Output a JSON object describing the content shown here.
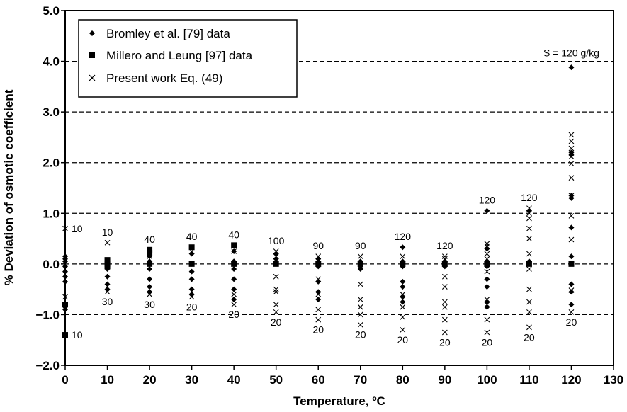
{
  "chart_data": {
    "type": "scatter",
    "xlabel": "Temperature, ºC",
    "ylabel": "% Deviation of osmotic coefficient",
    "xlim": [
      0,
      130
    ],
    "ylim": [
      -2.0,
      5.0
    ],
    "x_ticks": [
      "0",
      "10",
      "20",
      "30",
      "40",
      "50",
      "60",
      "70",
      "80",
      "90",
      "100",
      "110",
      "120",
      "130"
    ],
    "y_ticks": [
      "5.0",
      "4.0",
      "3.0",
      "2.0",
      "1.0",
      "0.0",
      "−1.0",
      "−2.0"
    ],
    "grid": "dashed horizontal lines at 4.0, 3.0, 2.0, 1.0, 0.0, -1.0",
    "legend_position": "top-left",
    "series": [
      {
        "name": "Bromley et al. [79] data",
        "marker": "diamond",
        "points": [
          [
            0,
            0.15
          ],
          [
            0,
            0.1
          ],
          [
            0,
            0.05
          ],
          [
            0,
            -0.05
          ],
          [
            0,
            -0.15
          ],
          [
            0,
            -0.25
          ],
          [
            0,
            -0.35
          ],
          [
            0,
            -0.85
          ],
          [
            0,
            -0.9
          ],
          [
            10,
            0.05
          ],
          [
            10,
            -0.1
          ],
          [
            10,
            -0.25
          ],
          [
            10,
            -0.4
          ],
          [
            10,
            -0.5
          ],
          [
            20,
            0.15
          ],
          [
            20,
            0.05
          ],
          [
            20,
            -0.1
          ],
          [
            20,
            -0.3
          ],
          [
            20,
            -0.45
          ],
          [
            20,
            -0.55
          ],
          [
            30,
            0.2
          ],
          [
            30,
            0.0
          ],
          [
            30,
            -0.15
          ],
          [
            30,
            -0.3
          ],
          [
            30,
            -0.5
          ],
          [
            30,
            -0.6
          ],
          [
            40,
            0.25
          ],
          [
            40,
            0.05
          ],
          [
            40,
            -0.1
          ],
          [
            40,
            -0.3
          ],
          [
            40,
            -0.5
          ],
          [
            40,
            -0.7
          ],
          [
            50,
            0.2
          ],
          [
            50,
            0.1
          ],
          [
            50,
            0.0
          ],
          [
            60,
            0.1
          ],
          [
            60,
            -0.05
          ],
          [
            60,
            -0.35
          ],
          [
            60,
            -0.55
          ],
          [
            60,
            -0.7
          ],
          [
            70,
            0.05
          ],
          [
            70,
            -0.05
          ],
          [
            70,
            -0.1
          ],
          [
            80,
            0.33
          ],
          [
            80,
            0.05
          ],
          [
            80,
            -0.05
          ],
          [
            80,
            -0.35
          ],
          [
            80,
            -0.45
          ],
          [
            80,
            -0.65
          ],
          [
            80,
            -0.75
          ],
          [
            90,
            0.05
          ],
          [
            90,
            -0.05
          ],
          [
            100,
            1.05
          ],
          [
            100,
            0.3
          ],
          [
            100,
            0.05
          ],
          [
            100,
            -0.05
          ],
          [
            100,
            -0.3
          ],
          [
            100,
            -0.45
          ],
          [
            100,
            -0.75
          ],
          [
            100,
            -0.85
          ],
          [
            110,
            1.05
          ],
          [
            110,
            0.05
          ],
          [
            120,
            3.88
          ],
          [
            120,
            2.2
          ],
          [
            120,
            2.15
          ],
          [
            120,
            1.35
          ],
          [
            120,
            1.3
          ],
          [
            120,
            0.72
          ],
          [
            120,
            0.15
          ],
          [
            120,
            -0.4
          ],
          [
            120,
            -0.55
          ],
          [
            120,
            -0.8
          ]
        ]
      },
      {
        "name": "Millero and Leung [97] data",
        "marker": "square",
        "points": [
          [
            0,
            -1.4
          ],
          [
            0,
            -0.8
          ],
          [
            10,
            0.08
          ],
          [
            10,
            0.0
          ],
          [
            10,
            -0.05
          ],
          [
            20,
            0.28
          ],
          [
            20,
            0.22
          ],
          [
            20,
            0.0
          ],
          [
            30,
            0.33
          ],
          [
            30,
            0.0
          ],
          [
            40,
            0.37
          ],
          [
            40,
            0.0
          ],
          [
            50,
            0.0
          ],
          [
            60,
            0.0
          ],
          [
            70,
            0.0
          ],
          [
            80,
            0.0
          ],
          [
            90,
            0.0
          ],
          [
            100,
            0.0
          ],
          [
            110,
            0.0
          ],
          [
            120,
            0.0
          ]
        ]
      },
      {
        "name": "Present work Eq. (49)",
        "marker": "x",
        "points": [
          [
            0,
            0.7
          ],
          [
            0,
            -0.65
          ],
          [
            10,
            0.42
          ],
          [
            10,
            -0.55
          ],
          [
            20,
            0.15
          ],
          [
            20,
            -0.6
          ],
          [
            30,
            0.25
          ],
          [
            30,
            -0.65
          ],
          [
            40,
            0.25
          ],
          [
            40,
            -0.6
          ],
          [
            40,
            -0.8
          ],
          [
            50,
            0.25
          ],
          [
            50,
            0.15
          ],
          [
            50,
            -0.25
          ],
          [
            50,
            -0.5
          ],
          [
            50,
            -0.55
          ],
          [
            50,
            -0.8
          ],
          [
            50,
            -0.95
          ],
          [
            60,
            0.15
          ],
          [
            60,
            -0.3
          ],
          [
            60,
            -0.6
          ],
          [
            60,
            -0.9
          ],
          [
            60,
            -1.1
          ],
          [
            70,
            0.15
          ],
          [
            70,
            -0.4
          ],
          [
            70,
            -0.7
          ],
          [
            70,
            -0.85
          ],
          [
            70,
            -1.0
          ],
          [
            70,
            -1.2
          ],
          [
            80,
            0.15
          ],
          [
            80,
            -0.6
          ],
          [
            80,
            -0.85
          ],
          [
            80,
            -1.05
          ],
          [
            80,
            -1.3
          ],
          [
            90,
            0.15
          ],
          [
            90,
            0.1
          ],
          [
            90,
            -0.25
          ],
          [
            90,
            -0.45
          ],
          [
            90,
            -0.75
          ],
          [
            90,
            -0.85
          ],
          [
            90,
            -1.1
          ],
          [
            90,
            -1.35
          ],
          [
            100,
            0.4
          ],
          [
            100,
            0.35
          ],
          [
            100,
            0.2
          ],
          [
            100,
            0.1
          ],
          [
            100,
            -0.15
          ],
          [
            100,
            -0.7
          ],
          [
            100,
            -0.8
          ],
          [
            100,
            -1.1
          ],
          [
            100,
            -1.35
          ],
          [
            110,
            1.1
          ],
          [
            110,
            1.0
          ],
          [
            110,
            0.9
          ],
          [
            110,
            0.7
          ],
          [
            110,
            0.5
          ],
          [
            110,
            0.2
          ],
          [
            110,
            -0.1
          ],
          [
            110,
            -0.5
          ],
          [
            110,
            -0.75
          ],
          [
            110,
            -0.95
          ],
          [
            110,
            -1.25
          ],
          [
            120,
            2.55
          ],
          [
            120,
            2.42
          ],
          [
            120,
            2.28
          ],
          [
            120,
            2.12
          ],
          [
            120,
            1.98
          ],
          [
            120,
            1.7
          ],
          [
            120,
            1.35
          ],
          [
            120,
            0.95
          ],
          [
            120,
            0.48
          ],
          [
            120,
            -0.52
          ],
          [
            120,
            -0.95
          ]
        ]
      }
    ],
    "annotations": [
      {
        "text": "S = 120 g/kg",
        "x": 120,
        "y": 4.0
      },
      {
        "text": "10",
        "x": 0,
        "y": 0.7
      },
      {
        "text": "10",
        "x": 0,
        "y": -1.4
      },
      {
        "text": "10",
        "x": 10,
        "y": 0.42
      },
      {
        "text": "30",
        "x": 10,
        "y": -0.55
      },
      {
        "text": "40",
        "x": 20,
        "y": 0.28
      },
      {
        "text": "30",
        "x": 20,
        "y": -0.6
      },
      {
        "text": "40",
        "x": 30,
        "y": 0.33
      },
      {
        "text": "20",
        "x": 30,
        "y": -0.65
      },
      {
        "text": "40",
        "x": 40,
        "y": 0.37
      },
      {
        "text": "20",
        "x": 40,
        "y": -0.8
      },
      {
        "text": "100",
        "x": 50,
        "y": 0.25
      },
      {
        "text": "20",
        "x": 50,
        "y": -0.95
      },
      {
        "text": "90",
        "x": 60,
        "y": 0.15
      },
      {
        "text": "20",
        "x": 60,
        "y": -1.1
      },
      {
        "text": "90",
        "x": 70,
        "y": 0.15
      },
      {
        "text": "20",
        "x": 70,
        "y": -1.2
      },
      {
        "text": "120",
        "x": 80,
        "y": 0.33
      },
      {
        "text": "20",
        "x": 80,
        "y": -1.3
      },
      {
        "text": "120",
        "x": 90,
        "y": 0.15
      },
      {
        "text": "20",
        "x": 90,
        "y": -1.35
      },
      {
        "text": "120",
        "x": 100,
        "y": 1.05
      },
      {
        "text": "20",
        "x": 100,
        "y": -1.35
      },
      {
        "text": "120",
        "x": 110,
        "y": 1.1
      },
      {
        "text": "20",
        "x": 110,
        "y": -1.25
      },
      {
        "text": "20",
        "x": 120,
        "y": -0.95
      }
    ]
  }
}
